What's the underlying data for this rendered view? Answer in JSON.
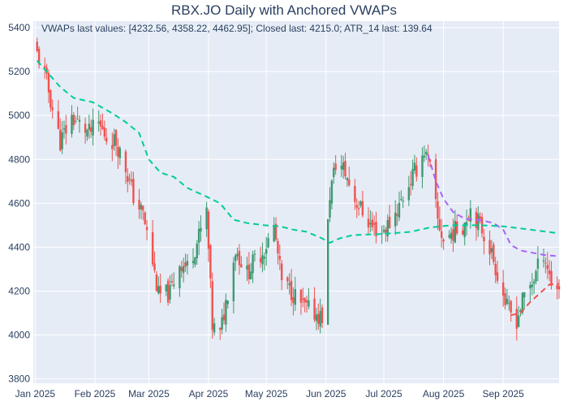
{
  "chart_data": {
    "type": "candlestick",
    "title": "RBX.JO Daily with Anchored VWAPs",
    "annotation": "VWAPs last values: [4232.56, 4358.22, 4462.95]; Closed last: 4215.0; ATR_14 last: 139.64",
    "x_range": [
      "2024-12-31",
      "2025-09-30"
    ],
    "y_range": [
      3780,
      5430
    ],
    "y_ticks": [
      3800,
      4000,
      4200,
      4400,
      4600,
      4800,
      5000,
      5200,
      5400
    ],
    "x_ticks": [
      {
        "date": "2025-01-01",
        "label": "Jan 2025"
      },
      {
        "date": "2025-02-01",
        "label": "Feb 2025"
      },
      {
        "date": "2025-03-01",
        "label": "Mar 2025"
      },
      {
        "date": "2025-04-01",
        "label": "Apr 2025"
      },
      {
        "date": "2025-05-01",
        "label": "May 2025"
      },
      {
        "date": "2025-06-01",
        "label": "Jun 2025"
      },
      {
        "date": "2025-07-01",
        "label": "Jul 2025"
      },
      {
        "date": "2025-08-01",
        "label": "Aug 2025"
      },
      {
        "date": "2025-09-01",
        "label": "Sep 2025"
      }
    ],
    "colors": {
      "plot_bg": "#e5ecf6",
      "grid": "#ffffff",
      "up": "#3d9970",
      "down": "#ef5350",
      "vwap_1": "#ef5350",
      "vwap_2": "#ab63fa",
      "vwap_3": "#00cc96"
    },
    "close_anchors": [
      [
        "2025-01-02",
        5280
      ],
      [
        "2025-01-06",
        5190
      ],
      [
        "2025-01-10",
        5030
      ],
      [
        "2025-01-14",
        4880
      ],
      [
        "2025-01-20",
        4990
      ],
      [
        "2025-01-24",
        4960
      ],
      [
        "2025-01-29",
        4920
      ],
      [
        "2025-02-03",
        4960
      ],
      [
        "2025-02-07",
        4900
      ],
      [
        "2025-02-12",
        4880
      ],
      [
        "2025-02-17",
        4760
      ],
      [
        "2025-02-21",
        4630
      ],
      [
        "2025-02-26",
        4550
      ],
      [
        "2025-03-03",
        4330
      ],
      [
        "2025-03-06",
        4180
      ],
      [
        "2025-03-12",
        4190
      ],
      [
        "2025-03-17",
        4330
      ],
      [
        "2025-03-21",
        4310
      ],
      [
        "2025-03-26",
        4420
      ],
      [
        "2025-03-31",
        4560
      ],
      [
        "2025-04-03",
        4040
      ],
      [
        "2025-04-07",
        4000
      ],
      [
        "2025-04-11",
        4200
      ],
      [
        "2025-04-15",
        4390
      ],
      [
        "2025-04-21",
        4280
      ],
      [
        "2025-04-25",
        4340
      ],
      [
        "2025-04-30",
        4390
      ],
      [
        "2025-05-05",
        4490
      ],
      [
        "2025-05-09",
        4240
      ],
      [
        "2025-05-14",
        4200
      ],
      [
        "2025-05-20",
        4130
      ],
      [
        "2025-05-26",
        4100
      ],
      [
        "2025-05-30",
        4080
      ],
      [
        "2025-06-03",
        4640
      ],
      [
        "2025-06-06",
        4780
      ],
      [
        "2025-06-10",
        4760
      ],
      [
        "2025-06-16",
        4620
      ],
      [
        "2025-06-20",
        4560
      ],
      [
        "2025-06-25",
        4490
      ],
      [
        "2025-06-30",
        4470
      ],
      [
        "2025-07-04",
        4510
      ],
      [
        "2025-07-09",
        4590
      ],
      [
        "2025-07-14",
        4690
      ],
      [
        "2025-07-18",
        4760
      ],
      [
        "2025-07-22",
        4840
      ],
      [
        "2025-07-25",
        4760
      ],
      [
        "2025-07-29",
        4520
      ],
      [
        "2025-08-01",
        4430
      ],
      [
        "2025-08-06",
        4470
      ],
      [
        "2025-08-11",
        4500
      ],
      [
        "2025-08-15",
        4580
      ],
      [
        "2025-08-20",
        4500
      ],
      [
        "2025-08-25",
        4400
      ],
      [
        "2025-08-29",
        4280
      ],
      [
        "2025-09-03",
        4120
      ],
      [
        "2025-09-08",
        4070
      ],
      [
        "2025-09-12",
        4180
      ],
      [
        "2025-09-17",
        4260
      ],
      [
        "2025-09-22",
        4380
      ],
      [
        "2025-09-26",
        4240
      ],
      [
        "2025-09-30",
        4215
      ]
    ],
    "vwaps": [
      {
        "values_last": 4232.56,
        "points": [
          [
            "2025-09-05",
            4090
          ],
          [
            "2025-09-10",
            4100
          ],
          [
            "2025-09-15",
            4150
          ],
          [
            "2025-09-20",
            4190
          ],
          [
            "2025-09-25",
            4230
          ],
          [
            "2025-09-30",
            4232.56
          ]
        ]
      },
      {
        "values_last": 4358.22,
        "points": [
          [
            "2025-07-24",
            4820
          ],
          [
            "2025-07-28",
            4700
          ],
          [
            "2025-08-01",
            4620
          ],
          [
            "2025-08-06",
            4560
          ],
          [
            "2025-08-12",
            4530
          ],
          [
            "2025-08-18",
            4525
          ],
          [
            "2025-08-22",
            4520
          ],
          [
            "2025-08-27",
            4510
          ],
          [
            "2025-09-01",
            4480
          ],
          [
            "2025-09-05",
            4410
          ],
          [
            "2025-09-10",
            4385
          ],
          [
            "2025-09-16",
            4375
          ],
          [
            "2025-09-22",
            4365
          ],
          [
            "2025-09-30",
            4358.22
          ]
        ]
      },
      {
        "values_last": 4462.95,
        "points": [
          [
            "2025-01-02",
            5250
          ],
          [
            "2025-01-07",
            5200
          ],
          [
            "2025-01-14",
            5130
          ],
          [
            "2025-01-21",
            5080
          ],
          [
            "2025-01-31",
            5060
          ],
          [
            "2025-02-10",
            5010
          ],
          [
            "2025-02-17",
            4970
          ],
          [
            "2025-02-24",
            4920
          ],
          [
            "2025-03-01",
            4800
          ],
          [
            "2025-03-07",
            4740
          ],
          [
            "2025-03-14",
            4720
          ],
          [
            "2025-03-21",
            4670
          ],
          [
            "2025-03-31",
            4630
          ],
          [
            "2025-04-07",
            4600
          ],
          [
            "2025-04-14",
            4525
          ],
          [
            "2025-04-21",
            4510
          ],
          [
            "2025-04-30",
            4500
          ],
          [
            "2025-05-08",
            4495
          ],
          [
            "2025-05-15",
            4480
          ],
          [
            "2025-05-22",
            4470
          ],
          [
            "2025-05-30",
            4440
          ],
          [
            "2025-06-03",
            4420
          ],
          [
            "2025-06-08",
            4440
          ],
          [
            "2025-06-15",
            4455
          ],
          [
            "2025-06-30",
            4460
          ],
          [
            "2025-07-15",
            4470
          ],
          [
            "2025-07-25",
            4490
          ],
          [
            "2025-08-05",
            4500
          ],
          [
            "2025-08-20",
            4500
          ],
          [
            "2025-09-01",
            4495
          ],
          [
            "2025-09-15",
            4480
          ],
          [
            "2025-09-30",
            4462.95
          ]
        ]
      }
    ]
  }
}
